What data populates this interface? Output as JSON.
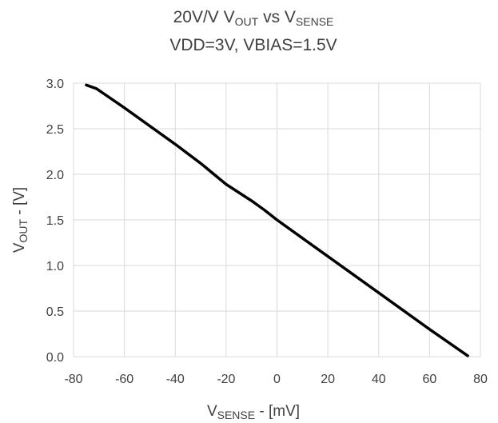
{
  "chart_data": {
    "type": "line",
    "title": {
      "line1": {
        "pre": "20V/V V",
        "sub1": "OUT",
        "mid": " vs V",
        "sub2": "SENSE"
      },
      "line2": "VDD=3V, VBIAS=1.5V"
    },
    "xlabel": {
      "main": "V",
      "sub": "SENSE",
      "rest": " - [mV]"
    },
    "ylabel": {
      "main": "V",
      "sub": "OUT",
      "rest": " - [V]"
    },
    "xlim": [
      -80,
      80
    ],
    "ylim": [
      0.0,
      3.0
    ],
    "xticks": [
      -80,
      -60,
      -40,
      -20,
      0,
      20,
      40,
      60,
      80
    ],
    "yticks": [
      0.0,
      0.5,
      1.0,
      1.5,
      2.0,
      2.5,
      3.0
    ],
    "xtick_labels": [
      "-80",
      "-60",
      "-40",
      "-20",
      "0",
      "20",
      "40",
      "60",
      "80"
    ],
    "ytick_labels": [
      "0.0",
      "0.5",
      "1.0",
      "1.5",
      "2.0",
      "2.5",
      "3.0"
    ],
    "grid": true,
    "legend": "none",
    "series": [
      {
        "color": "#000000",
        "x": [
          -75,
          -71,
          -60,
          -40,
          -30,
          -20,
          -10,
          -5,
          0,
          20,
          40,
          60,
          75
        ],
        "y": [
          2.98,
          2.94,
          2.73,
          2.33,
          2.12,
          1.89,
          1.71,
          1.61,
          1.5,
          1.1,
          0.7,
          0.3,
          0.01
        ]
      }
    ]
  }
}
